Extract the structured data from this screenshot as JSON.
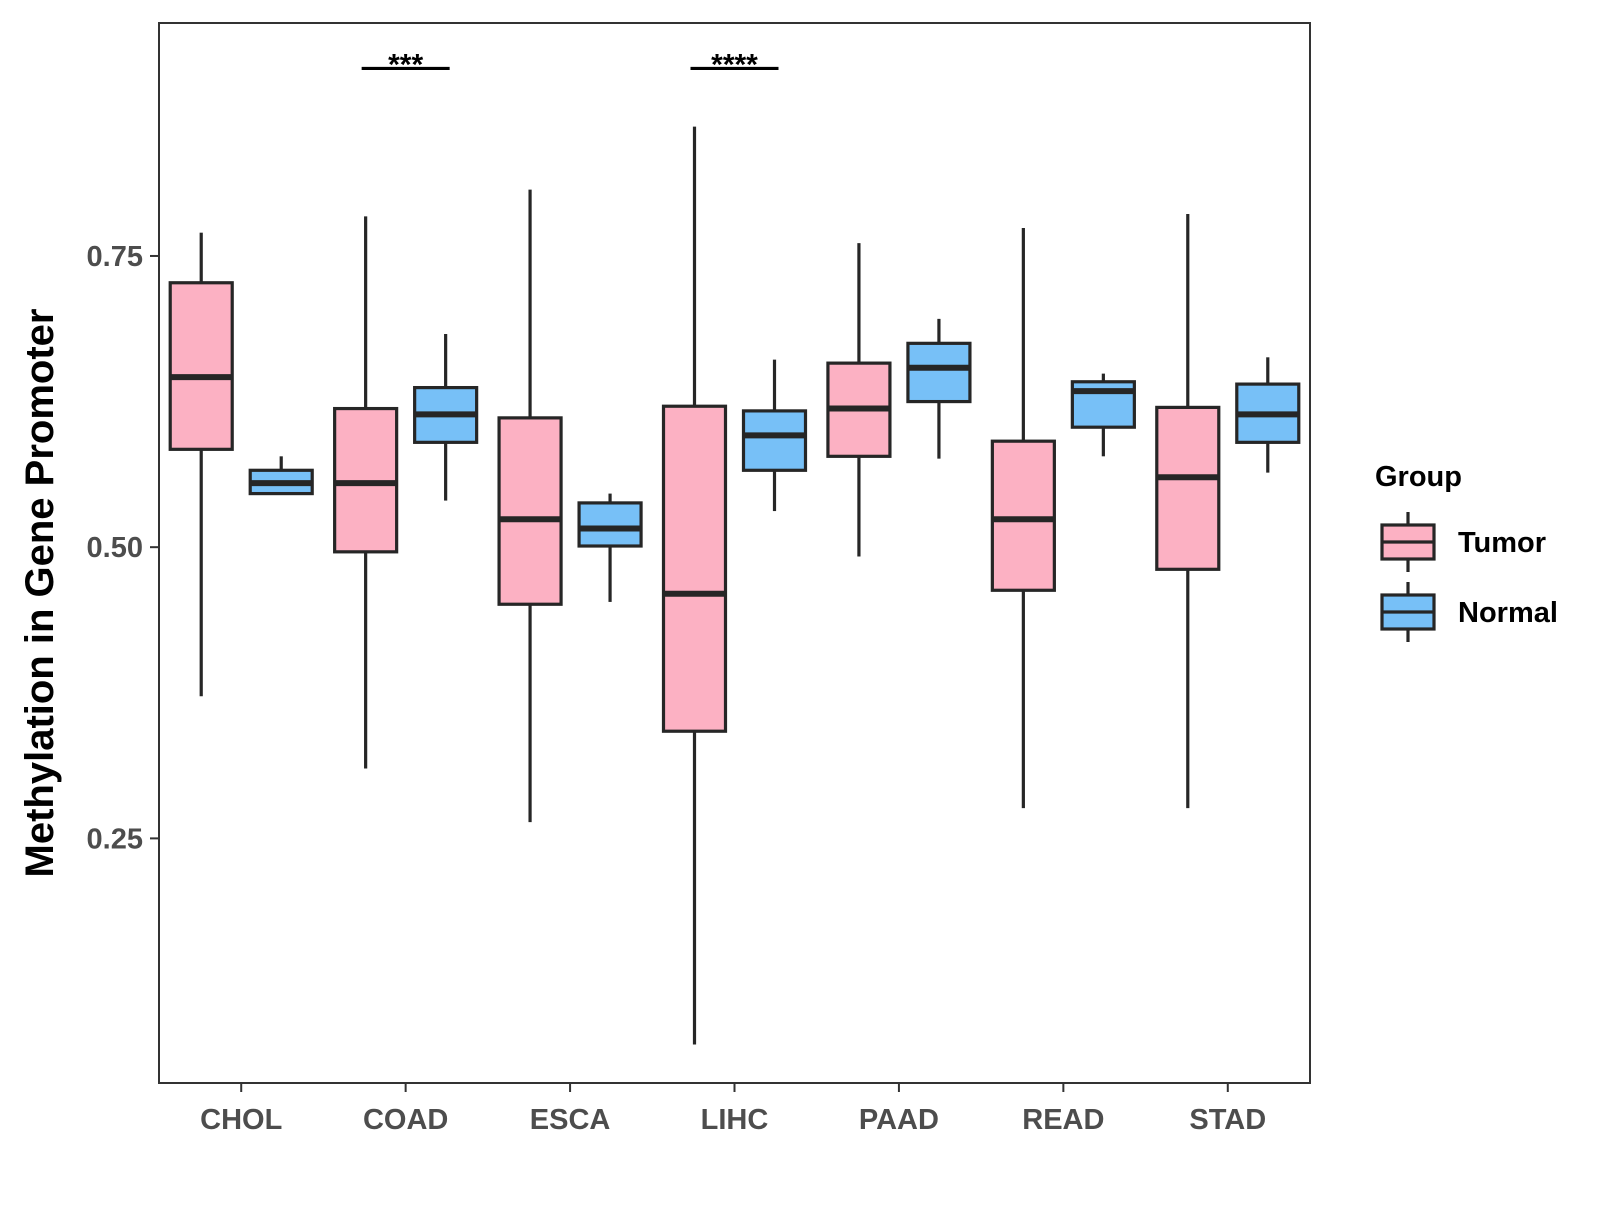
{
  "chart_data": {
    "type": "boxplot",
    "title": "",
    "xlabel": "",
    "ylabel": "Methylation in Gene Promoter",
    "ylim": [
      0.04,
      0.95
    ],
    "yticks": [
      0.25,
      0.5,
      0.75
    ],
    "ytick_labels": [
      "0.25",
      "0.50",
      "0.75"
    ],
    "grid": false,
    "categories": [
      "CHOL",
      "COAD",
      "ESCA",
      "LIHC",
      "PAAD",
      "READ",
      "STAD"
    ],
    "legend": {
      "title": "Group",
      "position": "right",
      "entries": [
        {
          "key": "Tumor",
          "label": "Tumor",
          "color": "#FCB1C3"
        },
        {
          "key": "Normal",
          "label": "Normal",
          "color": "#77C0F7"
        }
      ]
    },
    "series": [
      {
        "name": "Tumor",
        "color": "#FCB1C3",
        "boxes": [
          {
            "category": "CHOL",
            "min": 0.372,
            "q1": 0.584,
            "median": 0.646,
            "q3": 0.727,
            "max": 0.77
          },
          {
            "category": "COAD",
            "min": 0.31,
            "q1": 0.496,
            "median": 0.555,
            "q3": 0.619,
            "max": 0.784
          },
          {
            "category": "ESCA",
            "min": 0.264,
            "q1": 0.451,
            "median": 0.524,
            "q3": 0.611,
            "max": 0.807
          },
          {
            "category": "LIHC",
            "min": 0.073,
            "q1": 0.342,
            "median": 0.46,
            "q3": 0.621,
            "max": 0.861
          },
          {
            "category": "PAAD",
            "min": 0.492,
            "q1": 0.578,
            "median": 0.619,
            "q3": 0.658,
            "max": 0.761
          },
          {
            "category": "READ",
            "min": 0.276,
            "q1": 0.463,
            "median": 0.524,
            "q3": 0.591,
            "max": 0.774
          },
          {
            "category": "STAD",
            "min": 0.276,
            "q1": 0.481,
            "median": 0.56,
            "q3": 0.62,
            "max": 0.786
          }
        ]
      },
      {
        "name": "Normal",
        "color": "#77C0F7",
        "boxes": [
          {
            "category": "CHOL",
            "min": 0.546,
            "q1": 0.546,
            "median": 0.555,
            "q3": 0.566,
            "max": 0.578
          },
          {
            "category": "COAD",
            "min": 0.54,
            "q1": 0.59,
            "median": 0.614,
            "q3": 0.637,
            "max": 0.683
          },
          {
            "category": "ESCA",
            "min": 0.453,
            "q1": 0.501,
            "median": 0.516,
            "q3": 0.538,
            "max": 0.546
          },
          {
            "category": "LIHC",
            "min": 0.531,
            "q1": 0.566,
            "median": 0.596,
            "q3": 0.617,
            "max": 0.661
          },
          {
            "category": "PAAD",
            "min": 0.576,
            "q1": 0.625,
            "median": 0.654,
            "q3": 0.675,
            "max": 0.696
          },
          {
            "category": "READ",
            "min": 0.578,
            "q1": 0.603,
            "median": 0.634,
            "q3": 0.642,
            "max": 0.649
          },
          {
            "category": "STAD",
            "min": 0.564,
            "q1": 0.59,
            "median": 0.614,
            "q3": 0.64,
            "max": 0.663
          }
        ]
      }
    ],
    "significance": [
      {
        "category": "COAD",
        "label": "***",
        "y": 0.911
      },
      {
        "category": "LIHC",
        "label": "****",
        "y": 0.911
      }
    ]
  }
}
